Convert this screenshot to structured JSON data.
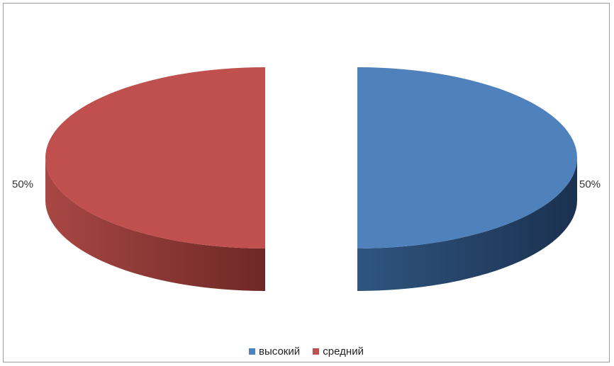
{
  "chart_data": {
    "type": "pie",
    "variant": "3d-exploded",
    "title": "",
    "categories": [
      "высокий",
      "средний"
    ],
    "values": [
      50,
      50
    ],
    "data_labels": [
      "50%",
      "50%"
    ],
    "colors": [
      "#4F81BD",
      "#C0504D"
    ],
    "side_colors": [
      "#2B4A70",
      "#8C3836"
    ],
    "legend": {
      "position": "bottom",
      "items": [
        {
          "label": "высокий",
          "color": "#4F81BD"
        },
        {
          "label": "средний",
          "color": "#C0504D"
        }
      ]
    }
  }
}
